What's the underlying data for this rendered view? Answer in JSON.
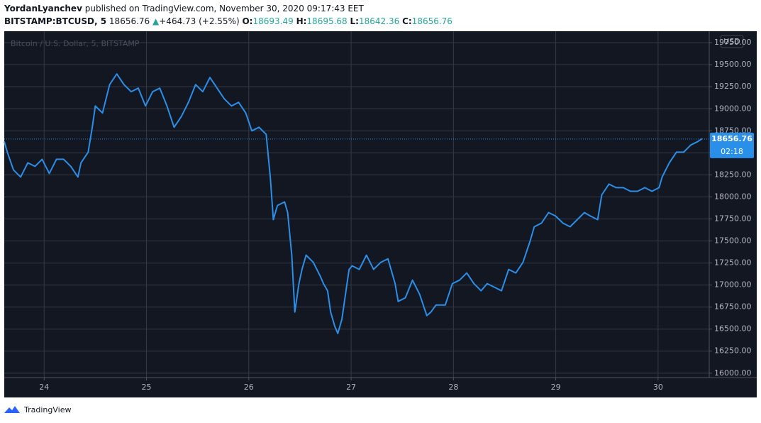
{
  "header": {
    "publisher": "YordanLyanchev",
    "published_text": "published on TradingView.com, November 30, 2020 09:17:43 EET",
    "symbol": "BITSTAMP:BTCUSD, 5",
    "price": "18656.76",
    "arrow": "▲",
    "change": "+464.73 (+2.55%)",
    "o_label": "O:",
    "o": "18693.49",
    "h_label": "H:",
    "h": "18695.68",
    "l_label": "L:",
    "l": "18642.36",
    "c_label": "C:",
    "c": "18656.76"
  },
  "footer": {
    "brand": "TradingView"
  },
  "chart_data": {
    "type": "line",
    "watermark": "Bitcoin / U.S. Dollar, 5, BITSTAMP",
    "currency": "USD",
    "color": "#2a8fe8",
    "grid": true,
    "last_price": 18656.76,
    "countdown": "02:18",
    "xlim": [
      23.61,
      30.5
    ],
    "xticks": [
      24,
      25,
      26,
      27,
      28,
      29,
      30
    ],
    "ylim": [
      15950,
      19880
    ],
    "yticks": [
      {
        "value": 16000,
        "label": "16000.00"
      },
      {
        "value": 16250,
        "label": "16250.00"
      },
      {
        "value": 16500,
        "label": "16500.00"
      },
      {
        "value": 16750,
        "label": "16750.00"
      },
      {
        "value": 17000,
        "label": "17000.00"
      },
      {
        "value": 17250,
        "label": "17250.00"
      },
      {
        "value": 17500,
        "label": "17500.00"
      },
      {
        "value": 17750,
        "label": "17750.00"
      },
      {
        "value": 18000,
        "label": "18000.00"
      },
      {
        "value": 18250,
        "label": "18250.00"
      },
      {
        "value": 18500,
        "label": "18500.00"
      },
      {
        "value": 18750,
        "label": "18750.00"
      },
      {
        "value": 19000,
        "label": "19000.00"
      },
      {
        "value": 19250,
        "label": "19250.00"
      },
      {
        "value": 19500,
        "label": "19500.00"
      },
      {
        "value": 19750,
        "label": "19750.00"
      }
    ],
    "x": [
      23.61,
      23.64,
      23.7,
      23.77,
      23.84,
      23.91,
      23.98,
      24.05,
      24.12,
      24.19,
      24.26,
      24.33,
      24.36,
      24.43,
      24.47,
      24.5,
      24.57,
      24.64,
      24.71,
      24.78,
      24.85,
      24.92,
      24.99,
      25.06,
      25.13,
      25.2,
      25.27,
      25.34,
      25.41,
      25.48,
      25.55,
      25.62,
      25.69,
      25.76,
      25.83,
      25.9,
      25.97,
      26.03,
      26.1,
      26.17,
      26.21,
      26.24,
      26.28,
      26.35,
      26.38,
      26.42,
      26.45,
      26.49,
      26.52,
      26.56,
      26.63,
      26.7,
      26.73,
      26.77,
      26.8,
      26.84,
      26.87,
      26.91,
      26.94,
      26.98,
      27.01,
      27.08,
      27.15,
      27.22,
      27.29,
      27.36,
      27.43,
      27.46,
      27.53,
      27.6,
      27.67,
      27.74,
      27.78,
      27.83,
      27.92,
      27.99,
      28.06,
      28.13,
      28.2,
      28.27,
      28.33,
      28.4,
      28.47,
      28.54,
      28.61,
      28.68,
      28.75,
      28.79,
      28.86,
      28.93,
      29.0,
      29.07,
      29.14,
      29.21,
      29.28,
      29.34,
      29.41,
      29.45,
      29.52,
      29.59,
      29.66,
      29.73,
      29.8,
      29.87,
      29.94,
      30.01,
      30.04,
      30.11,
      30.18,
      30.25,
      30.32,
      30.39,
      30.43
    ],
    "values": [
      18629,
      18508,
      18306,
      18226,
      18387,
      18347,
      18427,
      18266,
      18427,
      18427,
      18347,
      18226,
      18387,
      18508,
      18790,
      19032,
      18952,
      19274,
      19395,
      19274,
      19194,
      19234,
      19032,
      19194,
      19234,
      19032,
      18790,
      18911,
      19073,
      19274,
      19194,
      19355,
      19234,
      19113,
      19032,
      19073,
      18952,
      18750,
      18790,
      18710,
      18226,
      17742,
      17903,
      17943,
      17822,
      17339,
      16693,
      17016,
      17177,
      17339,
      17258,
      17097,
      17016,
      16935,
      16693,
      16532,
      16451,
      16613,
      16855,
      17177,
      17218,
      17177,
      17339,
      17177,
      17258,
      17298,
      17016,
      16814,
      16855,
      17056,
      16895,
      16653,
      16693,
      16774,
      16774,
      17016,
      17056,
      17137,
      17016,
      16935,
      17016,
      16976,
      16935,
      17177,
      17137,
      17258,
      17500,
      17661,
      17702,
      17822,
      17782,
      17702,
      17661,
      17742,
      17822,
      17782,
      17742,
      18024,
      18145,
      18105,
      18105,
      18064,
      18064,
      18105,
      18064,
      18105,
      18226,
      18387,
      18508,
      18508,
      18589,
      18629,
      18661
    ]
  }
}
